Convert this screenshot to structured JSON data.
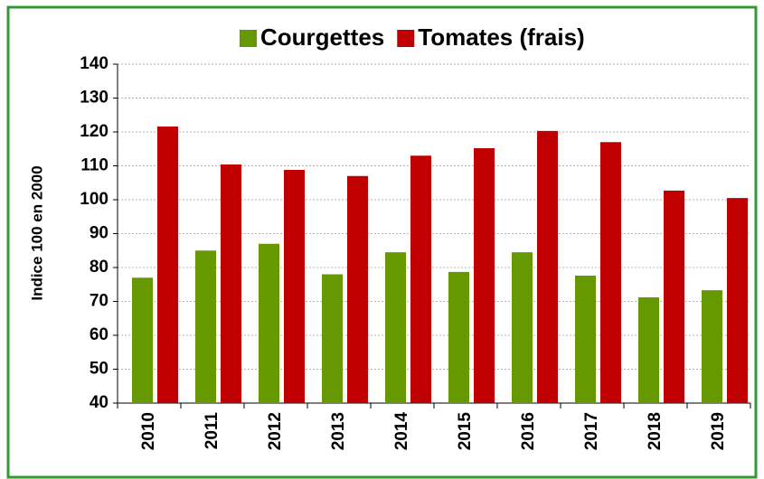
{
  "chart_data": {
    "type": "bar",
    "categories": [
      "2010",
      "2011",
      "2012",
      "2013",
      "2014",
      "2015",
      "2016",
      "2017",
      "2018",
      "2019"
    ],
    "series": [
      {
        "name": "Courgettes",
        "color": "#669900",
        "values": [
          77,
          85,
          87,
          78,
          84.5,
          78.7,
          84.5,
          77.6,
          71.2,
          73.3
        ]
      },
      {
        "name": "Tomates (frais)",
        "color": "#c00000",
        "values": [
          121.6,
          110.4,
          108.8,
          107,
          113,
          115.2,
          120.3,
          117,
          102.7,
          100.5
        ]
      }
    ],
    "ylabel": "Indice 100 en 2000",
    "ylim": [
      40,
      140
    ],
    "yticks": [
      40,
      50,
      60,
      70,
      80,
      90,
      100,
      110,
      120,
      130,
      140
    ],
    "grid": true,
    "legend": "top"
  }
}
